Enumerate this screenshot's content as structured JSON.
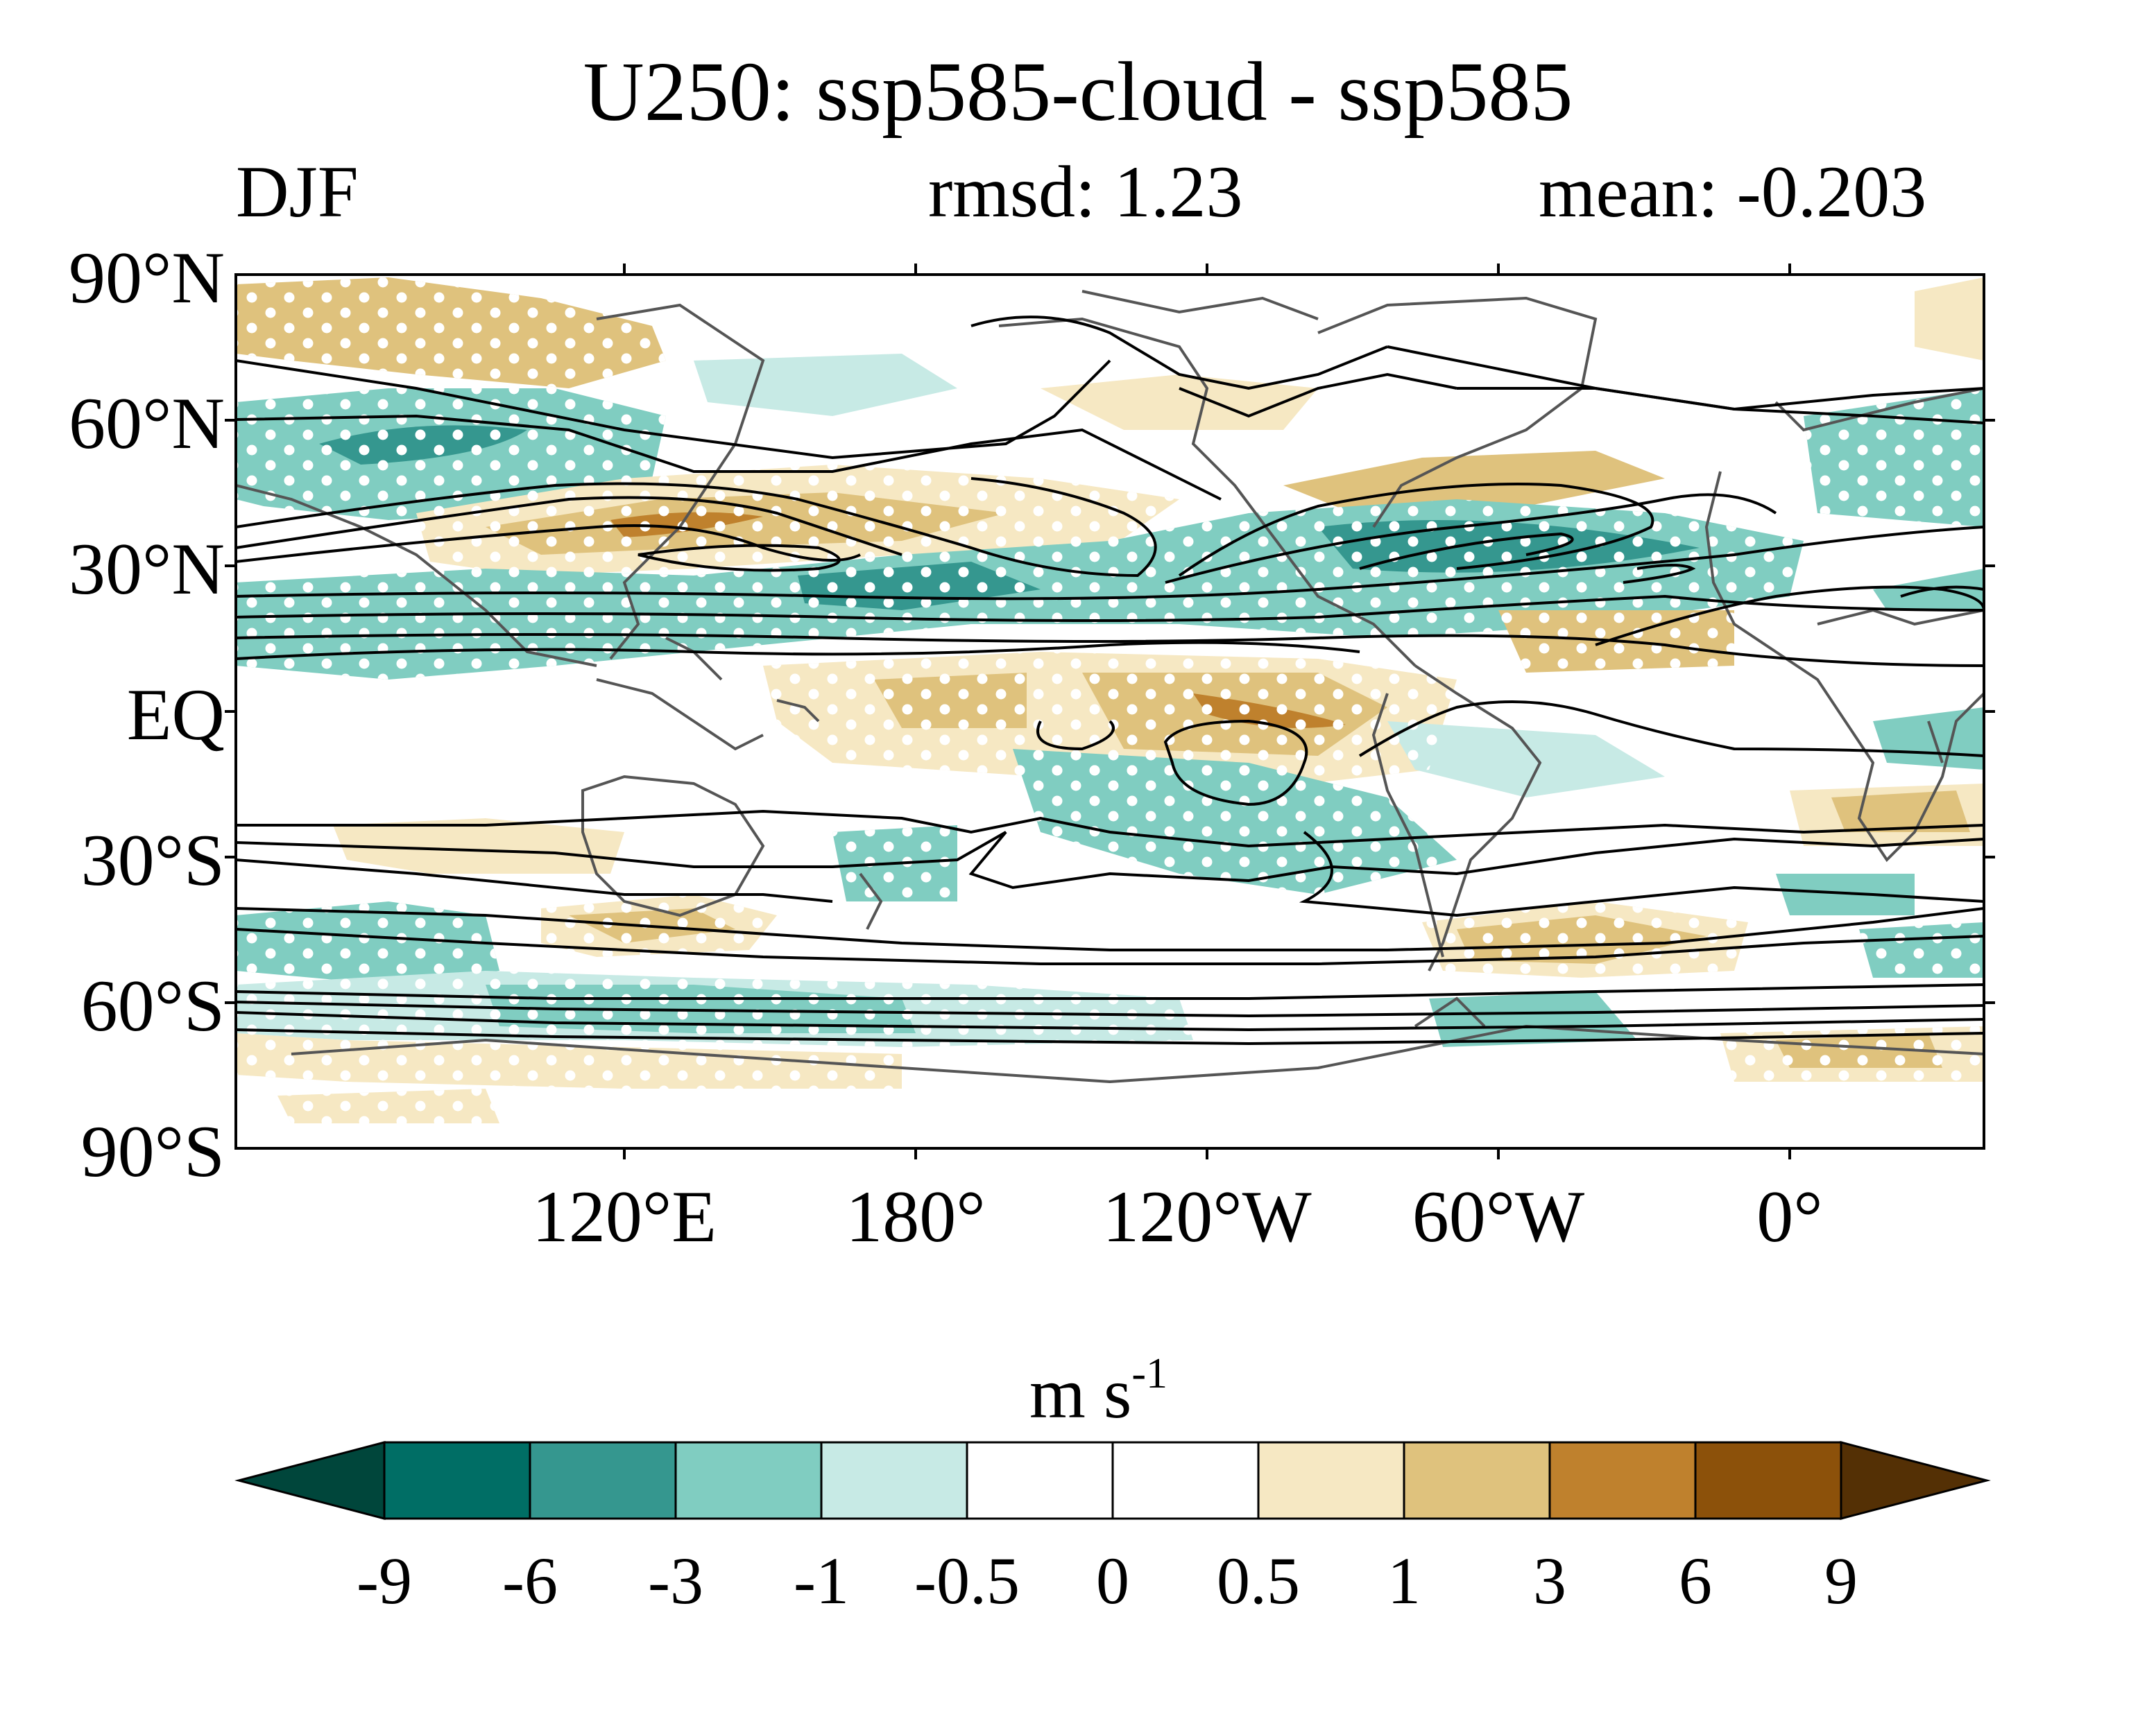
{
  "header": {
    "title": "U250: ssp585-cloud - ssp585",
    "season": "DJF",
    "rmsd_label": "rmsd: 1.23",
    "mean_label": "mean: -0.203"
  },
  "map": {
    "variable": "U250",
    "projection": "equirectangular, centered 150°W",
    "lat_ticks": [
      "90°N",
      "60°N",
      "30°N",
      "EQ",
      "30°S",
      "60°S",
      "90°S"
    ],
    "lon_ticks": [
      "120°E",
      "180°",
      "120°W",
      "60°W",
      "0°"
    ],
    "stippling": "white dots mark significant differences",
    "contours": "black lines: ssp585 mean zonal wind"
  },
  "colorbar": {
    "units_main": "m s",
    "units_exp": "-1",
    "levels": [
      "-9",
      "-6",
      "-3",
      "-1",
      "-0.5",
      "0",
      "0.5",
      "1",
      "3",
      "6",
      "9"
    ],
    "colors": [
      "#00463b",
      "#006e65",
      "#35978f",
      "#80cdc1",
      "#c7eae5",
      "#ffffff",
      "#ffffff",
      "#f6e8c3",
      "#dfc27d",
      "#bf812d",
      "#8c510a",
      "#543005"
    ]
  },
  "colors": {
    "land_outline": "#555555",
    "contour": "#000000",
    "stipple": "#ffffff"
  }
}
